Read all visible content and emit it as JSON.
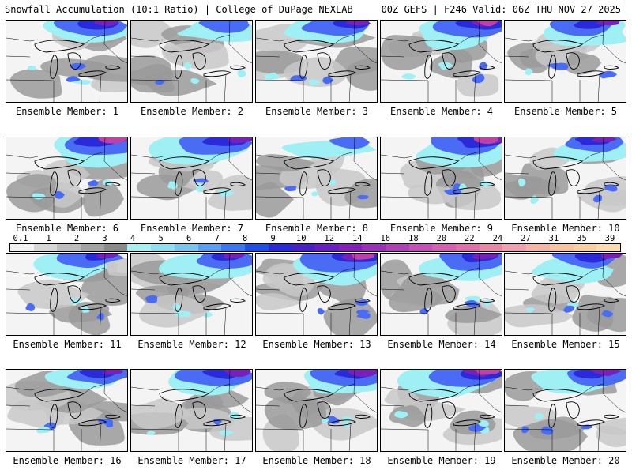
{
  "header": {
    "left": "Snowfall Accumulation (10:1 Ratio) | College of DuPage NEXLAB",
    "right": "00Z GEFS | F246 Valid: 06Z THU NOV 27 2025"
  },
  "panels": [
    {
      "label": "Ensemble Member: 1",
      "intensity": 0.75
    },
    {
      "label": "Ensemble Member: 2",
      "intensity": 0.45
    },
    {
      "label": "Ensemble Member: 3",
      "intensity": 0.7
    },
    {
      "label": "Ensemble Member: 4",
      "intensity": 0.85
    },
    {
      "label": "Ensemble Member: 5",
      "intensity": 0.7
    },
    {
      "label": "Ensemble Member: 6",
      "intensity": 0.85
    },
    {
      "label": "Ensemble Member: 7",
      "intensity": 0.8
    },
    {
      "label": "Ensemble Member: 8",
      "intensity": 0.35
    },
    {
      "label": "Ensemble Member: 9",
      "intensity": 0.95
    },
    {
      "label": "Ensemble Member: 10",
      "intensity": 0.65
    },
    {
      "label": "Ensemble Member: 11",
      "intensity": 0.6
    },
    {
      "label": "Ensemble Member: 12",
      "intensity": 0.65
    },
    {
      "label": "Ensemble Member: 13",
      "intensity": 0.95
    },
    {
      "label": "Ensemble Member: 14",
      "intensity": 0.8
    },
    {
      "label": "Ensemble Member: 15",
      "intensity": 0.7
    },
    {
      "label": "Ensemble Member: 16",
      "intensity": 0.65
    },
    {
      "label": "Ensemble Member: 17",
      "intensity": 0.8
    },
    {
      "label": "Ensemble Member: 18",
      "intensity": 0.8
    },
    {
      "label": "Ensemble Member: 19",
      "intensity": 0.85
    },
    {
      "label": "Ensemble Member: 20",
      "intensity": 0.75
    }
  ],
  "colorbar": {
    "labels": [
      "0.1",
      "1",
      "2",
      "3",
      "4",
      "5",
      "6",
      "7",
      "8",
      "9",
      "10",
      "12",
      "14",
      "16",
      "18",
      "20",
      "22",
      "24",
      "27",
      "31",
      "35",
      "39"
    ],
    "colors": [
      "#f2f2f2",
      "#d6d6d6",
      "#bdbdbd",
      "#a3a3a3",
      "#8a8a8a",
      "#a8f0f0",
      "#8ee0f0",
      "#78c6f0",
      "#5aa0f0",
      "#3a78f0",
      "#1e50e8",
      "#2a2ad8",
      "#4a20c8",
      "#6a20c0",
      "#8420b8",
      "#9a30b8",
      "#b040b8",
      "#c450b8",
      "#d460b0",
      "#e070a8",
      "#e888a8",
      "#f0a0b0",
      "#f4b4a8",
      "#f8c4a0",
      "#f8d0a0",
      "#fadcb0"
    ]
  },
  "colors": {
    "land": "#f4f4f4",
    "light_gray": "#c8c8c8",
    "mid_gray": "#9a9a9a",
    "cyan": "#9ef0f4",
    "blue": "#4a6cf4",
    "deep_blue": "#2a2ad8",
    "purple": "#7a20b8",
    "magenta": "#c040a8",
    "outline": "#000000"
  }
}
